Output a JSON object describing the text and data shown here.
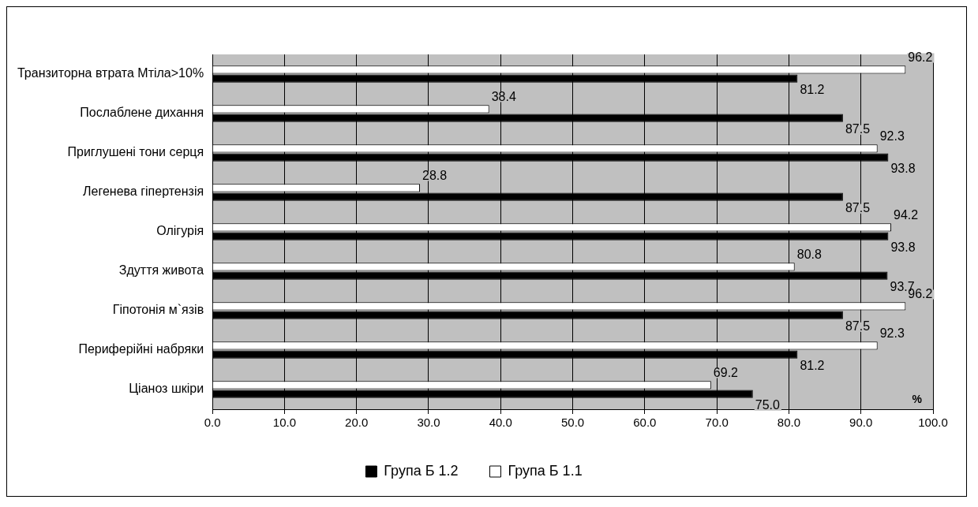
{
  "chart_data": {
    "type": "bar",
    "orientation": "horizontal",
    "categories": [
      "Транзиторна втрата Мтіла>10%",
      "Послаблене дихання",
      "Приглушені тони серця",
      "Легенева гіпертензія",
      "Олігурія",
      "Здуття живота",
      "Гіпотонія м`язів",
      "Периферійні набряки",
      "Ціаноз шкіри"
    ],
    "series": [
      {
        "name": "Група Б 1.2",
        "color": "#000000",
        "values": [
          81.2,
          87.5,
          93.8,
          87.5,
          93.8,
          93.7,
          87.5,
          81.2,
          75.0
        ],
        "value_labels": [
          "81.2",
          "87.5",
          "93.8",
          "87.5",
          "93.8",
          "93.7",
          "87.5",
          "81.2",
          "75.0"
        ]
      },
      {
        "name": "Група Б 1.1",
        "color": "#ffffff",
        "values": [
          96.2,
          38.4,
          92.3,
          28.8,
          94.2,
          80.8,
          96.2,
          92.3,
          69.2
        ],
        "value_labels": [
          "96.2",
          "38.4",
          "92.3",
          "28.8",
          "94.2",
          "80.8",
          "96.2",
          "92.3",
          "69.2"
        ]
      }
    ],
    "xlim": [
      0,
      100
    ],
    "xticks": [
      {
        "value": 0,
        "label": "0.0"
      },
      {
        "value": 10,
        "label": "10.0"
      },
      {
        "value": 20,
        "label": "20.0"
      },
      {
        "value": 30,
        "label": "30.0"
      },
      {
        "value": 40,
        "label": "40.0"
      },
      {
        "value": 50,
        "label": "50.0"
      },
      {
        "value": 60,
        "label": "60.0"
      },
      {
        "value": 70,
        "label": "70.0"
      },
      {
        "value": 80,
        "label": "80.0"
      },
      {
        "value": 90,
        "label": "90.0"
      },
      {
        "value": 100,
        "label": "100.0"
      }
    ],
    "grid": "x",
    "legend": "bottom",
    "annotations": [
      "%"
    ]
  }
}
